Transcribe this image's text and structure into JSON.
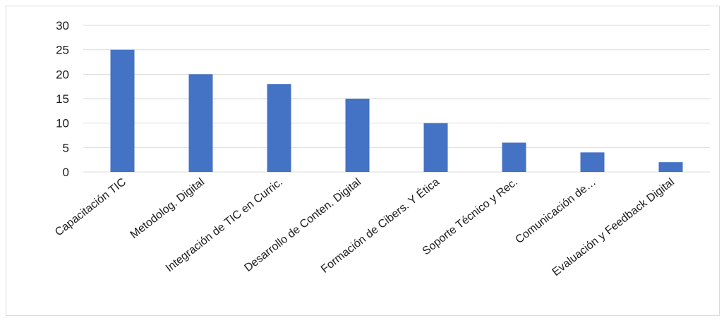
{
  "chart_data": {
    "type": "bar",
    "title": "",
    "xlabel": "",
    "ylabel": "",
    "categories": [
      "Capacitación TIC",
      "Metodolog. Digital",
      "Integración de TIC en Curric.",
      "Desarrollo de Conten. Digital",
      "Formación de Cibers. Y Ética",
      "Soporte Técnico y Rec.",
      "Comunicación de…",
      "Evaluación y Feedback Digital"
    ],
    "values": [
      25,
      20,
      18,
      15,
      10,
      6,
      4,
      2
    ],
    "ylim": [
      0,
      30
    ],
    "yticks": [
      0,
      5,
      10,
      15,
      20,
      25,
      30
    ],
    "grid": true,
    "legend": "none",
    "bar_color": "#4472c4",
    "grid_color": "#d9d9d9"
  }
}
